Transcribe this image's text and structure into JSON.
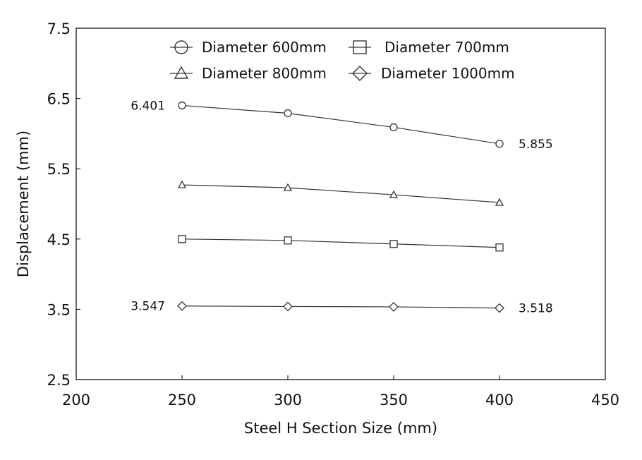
{
  "chart_data": {
    "type": "line",
    "title": "",
    "xlabel": "Steel H Section Size (mm)",
    "ylabel": "Displacement (mm)",
    "xlim": [
      200,
      450
    ],
    "ylim": [
      2.5,
      7.5
    ],
    "xticks": [
      "200",
      "250",
      "300",
      "350",
      "400",
      "450"
    ],
    "yticks": [
      "2.5",
      "3.5",
      "4.5",
      "5.5",
      "6.5",
      "7.5"
    ],
    "grid": false,
    "legend_position": "top-center",
    "line_color": "#333333",
    "x": [
      250,
      300,
      350,
      400
    ],
    "series": [
      {
        "name": "Diameter 600mm",
        "marker": "circle",
        "values": [
          6.401,
          6.29,
          6.09,
          5.855
        ]
      },
      {
        "name": "Diameter 700mm",
        "marker": "square",
        "values": [
          4.5,
          4.48,
          4.43,
          4.38
        ]
      },
      {
        "name": "Diameter 800mm",
        "marker": "triangle",
        "values": [
          5.27,
          5.23,
          5.13,
          5.02
        ]
      },
      {
        "name": "Diameter 1000mm",
        "marker": "diamond",
        "values": [
          3.547,
          3.54,
          3.535,
          3.518
        ]
      }
    ],
    "annotations": [
      {
        "text": "6.401",
        "x": 250,
        "y": 6.401,
        "side": "left"
      },
      {
        "text": "5.855",
        "x": 400,
        "y": 5.855,
        "side": "right"
      },
      {
        "text": "3.547",
        "x": 250,
        "y": 3.547,
        "side": "left"
      },
      {
        "text": "3.518",
        "x": 400,
        "y": 3.518,
        "side": "right"
      }
    ]
  }
}
